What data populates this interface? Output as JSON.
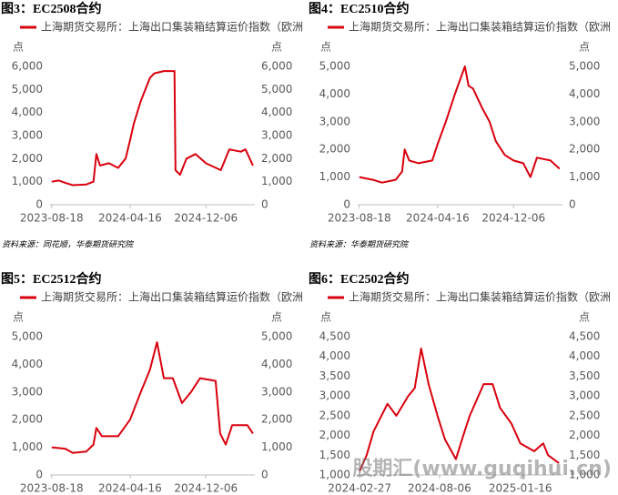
{
  "chart_data": [
    {
      "type": "line",
      "title": "图3：EC2508合约",
      "y_unit": "点",
      "source": "资料来源：同花顺，华泰期货研究院",
      "x": [
        "2023-08-18",
        "2023-09-09",
        "2023-09-29",
        "2023-10-22",
        "2023-12-03",
        "2023-12-25",
        "2024-01-03",
        "2024-01-14",
        "2024-02-11",
        "2024-03-10",
        "2024-04-02",
        "2024-04-16",
        "2024-04-27",
        "2024-05-19",
        "2024-06-16",
        "2024-06-30",
        "2024-07-29",
        "2024-08-31",
        "2024-09-03",
        "2024-09-17",
        "2024-10-07",
        "2024-11-04",
        "2024-12-06",
        "2025-01-21",
        "2025-02-16",
        "2025-03-24",
        "2025-04-07",
        "2025-04-30"
      ],
      "series": [
        {
          "name": "上海期货交易所：上海出口集装箱结算运价指数（欧洲",
          "color": "#d9000d",
          "values": [
            1000,
            1050,
            950,
            850,
            880,
            1000,
            2200,
            1700,
            1800,
            1600,
            2000,
            2800,
            3500,
            4500,
            5500,
            5700,
            5800,
            5800,
            1500,
            1300,
            2000,
            2200,
            1800,
            1500,
            2400,
            2300,
            2400,
            1700
          ]
        }
      ],
      "xlim": [
        "2023-08-13",
        "2025-05-06"
      ],
      "xticks": [
        "2023-08-18",
        "2024-04-16",
        "2024-12-06"
      ],
      "ylim": [
        0,
        6000
      ],
      "yticks": [
        0,
        {
          "value": 1000,
          "label": "1,000"
        },
        {
          "value": 2000,
          "label": "2,000"
        },
        {
          "value": 3000,
          "label": "3,000"
        },
        {
          "value": 4000,
          "label": "4,000"
        },
        {
          "value": 5000,
          "label": "5,000"
        },
        {
          "value": 6000,
          "label": "6,000"
        }
      ]
    },
    {
      "type": "line",
      "title": "图4：EC2510合约",
      "y_unit": "点",
      "source": "资料来源：华泰期货研究院",
      "x": [
        "2023-08-18",
        "2023-09-29",
        "2023-10-27",
        "2023-12-08",
        "2023-12-28",
        "2024-01-05",
        "2024-01-19",
        "2024-02-17",
        "2024-03-30",
        "2024-04-16",
        "2024-05-11",
        "2024-06-08",
        "2024-07-09",
        "2024-07-20",
        "2024-08-03",
        "2024-08-31",
        "2024-09-23",
        "2024-10-12",
        "2024-11-09",
        "2024-12-06",
        "2025-01-05",
        "2025-01-27",
        "2025-02-16",
        "2025-03-30",
        "2025-04-27"
      ],
      "series": [
        {
          "name": "上海期货交易所：上海出口集装箱结算运价指数（欧洲",
          "color": "#d9000d",
          "values": [
            1000,
            900,
            800,
            900,
            1200,
            2000,
            1600,
            1500,
            1600,
            2200,
            3000,
            4000,
            5000,
            4300,
            4200,
            3500,
            3000,
            2300,
            1800,
            1600,
            1500,
            1000,
            1700,
            1600,
            1300
          ]
        }
      ],
      "xlim": [
        "2023-08-13",
        "2025-05-06"
      ],
      "xticks": [
        "2023-08-18",
        "2024-04-16",
        "2024-12-06"
      ],
      "ylim": [
        0,
        5000
      ],
      "yticks": [
        0,
        {
          "value": 1000,
          "label": "1,000"
        },
        {
          "value": 2000,
          "label": "2,000"
        },
        {
          "value": 3000,
          "label": "3,000"
        },
        {
          "value": 4000,
          "label": "4,000"
        },
        {
          "value": 5000,
          "label": "5,000"
        }
      ]
    },
    {
      "type": "line",
      "title": "图5：EC2512合约",
      "y_unit": "点",
      "x": [
        "2023-08-18",
        "2023-09-29",
        "2023-10-22",
        "2023-12-03",
        "2023-12-25",
        "2024-01-03",
        "2024-01-20",
        "2024-03-10",
        "2024-04-16",
        "2024-05-19",
        "2024-06-16",
        "2024-07-08",
        "2024-07-29",
        "2024-08-26",
        "2024-09-23",
        "2024-10-21",
        "2024-11-18",
        "2025-01-05",
        "2025-01-19",
        "2025-02-05",
        "2025-02-25",
        "2025-04-13",
        "2025-04-30"
      ],
      "series": [
        {
          "name": "上海期货交易所：上海出口集装箱结算运价指数（欧洲",
          "color": "#d9000d",
          "values": [
            1000,
            950,
            800,
            850,
            1100,
            1700,
            1400,
            1400,
            2000,
            3000,
            3800,
            4800,
            3500,
            3500,
            2600,
            3000,
            3500,
            3400,
            1500,
            1100,
            1800,
            1800,
            1500
          ]
        }
      ],
      "xlim": [
        "2023-08-13",
        "2025-05-06"
      ],
      "xticks": [
        "2023-08-18",
        "2024-04-16",
        "2024-12-06"
      ],
      "ylim": [
        0,
        5000
      ],
      "yticks": [
        0,
        {
          "value": 1000,
          "label": "1,000"
        },
        {
          "value": 2000,
          "label": "2,000"
        },
        {
          "value": 3000,
          "label": "3,000"
        },
        {
          "value": 4000,
          "label": "4,000"
        },
        {
          "value": 5000,
          "label": "5,000"
        }
      ]
    },
    {
      "type": "line",
      "title": "图6：EC2502合约",
      "y_unit": "点",
      "x": [
        "2024-02-27",
        "2024-03-12",
        "2024-03-26",
        "2024-04-23",
        "2024-05-11",
        "2024-06-04",
        "2024-06-17",
        "2024-06-30",
        "2024-07-15",
        "2024-08-02",
        "2024-08-17",
        "2024-09-08",
        "2024-09-23",
        "2024-10-06",
        "2024-11-03",
        "2024-11-21",
        "2024-12-06",
        "2024-12-29",
        "2025-01-16",
        "2025-02-13",
        "2025-03-03",
        "2025-03-13",
        "2025-04-04"
      ],
      "series": [
        {
          "name": "上海期货交易所：上海出口集装箱结算运价指数（欧洲",
          "color": "#d9000d",
          "values": [
            1100,
            1500,
            2100,
            2800,
            2500,
            3000,
            3200,
            4200,
            3300,
            2500,
            1900,
            1400,
            2000,
            2500,
            3300,
            3300,
            2700,
            2300,
            1800,
            1600,
            1800,
            1500,
            1300
          ]
        }
      ],
      "xlim": [
        "2024-02-23",
        "2025-04-11"
      ],
      "xticks": [
        "2024-02-27",
        "2024-08-06",
        "2025-01-16"
      ],
      "ylim": [
        1000,
        4500
      ],
      "yticks": [
        {
          "value": 1000,
          "label": "1,000"
        },
        {
          "value": 1500,
          "label": "1,500"
        },
        {
          "value": 2000,
          "label": "2,000"
        },
        {
          "value": 2500,
          "label": "2,500"
        },
        {
          "value": 3000,
          "label": "3,000"
        },
        {
          "value": 3500,
          "label": "3,500"
        },
        {
          "value": 4000,
          "label": "4,000"
        },
        {
          "value": 4500,
          "label": "4,500"
        }
      ]
    }
  ],
  "watermark": "股期汇(www.guqihui.cn)"
}
